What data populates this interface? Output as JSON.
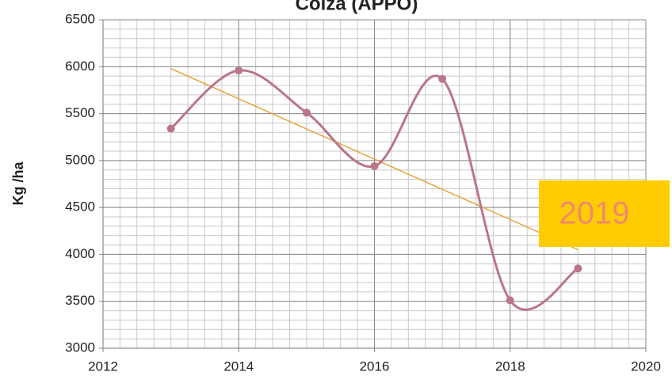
{
  "chart_data": {
    "type": "line",
    "title": "Colza (APPO)",
    "y_label": "Kg /ha",
    "series": [
      {
        "color": "#b9768a",
        "x": [
          2013,
          2014,
          2015,
          2016,
          2017,
          2018,
          2019
        ],
        "values": [
          5340,
          5960,
          5510,
          4940,
          5870,
          3510,
          3850
        ]
      }
    ],
    "trendline": {
      "color": "#e8a33c",
      "x": [
        2013,
        2019
      ],
      "values": [
        5980,
        4050
      ]
    },
    "xlim": [
      2012,
      2020
    ],
    "xticks": [
      2012,
      2014,
      2016,
      2018,
      2020
    ],
    "ylim": [
      3000,
      6500
    ],
    "yticks": [
      3000,
      3500,
      4000,
      4500,
      5000,
      5500,
      6000,
      6500
    ],
    "grid": true,
    "minor_grid": {
      "x": 0.25,
      "y": 100
    },
    "annotation": {
      "text": "2019",
      "color": "#f08a6a",
      "background": "#ffcc00"
    }
  }
}
